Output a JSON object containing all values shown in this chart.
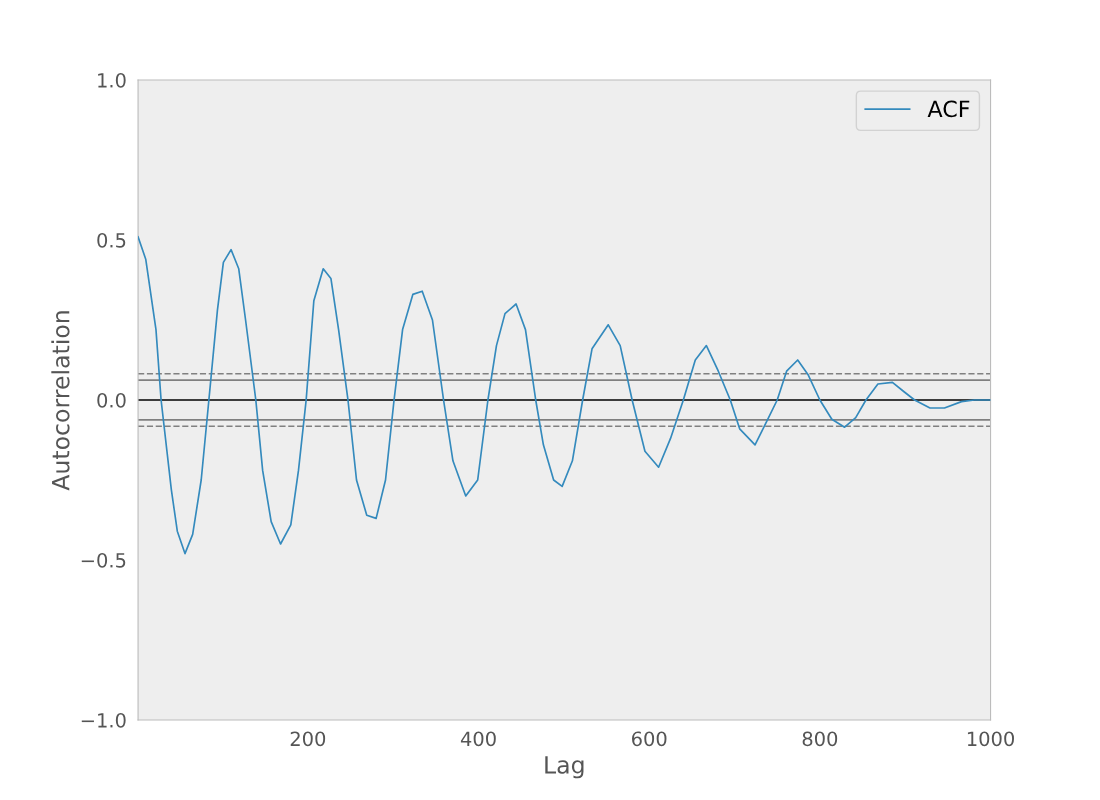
{
  "chart_data": {
    "type": "line",
    "xlabel": "Lag",
    "ylabel": "Autocorrelation",
    "xlim": [
      1,
      1000
    ],
    "xticks": [
      200,
      400,
      600,
      800,
      1000
    ],
    "ylim": [
      -1.0,
      1.0
    ],
    "yticks": [
      {
        "value": -1.0,
        "label": "−1.0"
      },
      {
        "value": -0.5,
        "label": "−0.5"
      },
      {
        "value": 0.0,
        "label": "0.0"
      },
      {
        "value": 0.5,
        "label": "0.5"
      },
      {
        "value": 1.0,
        "label": "1.0"
      }
    ],
    "grid": false,
    "legend": "top right",
    "marker": "none",
    "line_style": "solid",
    "ref_lines": [
      {
        "axis": "y",
        "value": 0.082,
        "color": "#808080",
        "line_style": "dashed"
      },
      {
        "axis": "y",
        "value": 0.062,
        "color": "#808080",
        "line_style": "solid"
      },
      {
        "axis": "y",
        "value": 0.0,
        "color": "#000000",
        "line_style": "solid"
      },
      {
        "axis": "y",
        "value": -0.062,
        "color": "#808080",
        "line_style": "solid"
      },
      {
        "axis": "y",
        "value": -0.082,
        "color": "#808080",
        "line_style": "dashed"
      }
    ],
    "series": [
      {
        "name": "ACF",
        "color": "#348abd",
        "x": [
          1,
          10,
          22,
          28,
          40,
          47,
          56,
          65,
          75,
          84,
          94,
          101,
          110,
          119,
          127,
          139,
          147,
          157,
          168,
          180,
          189,
          198,
          207,
          218,
          227,
          236,
          247,
          257,
          269,
          280,
          291,
          301,
          311,
          323,
          334,
          346,
          359,
          370,
          385,
          399,
          411,
          421,
          431,
          444,
          455,
          467,
          476,
          488,
          498,
          510,
          522,
          533,
          552,
          566,
          580,
          595,
          611,
          625,
          640,
          654,
          667,
          681,
          695,
          706,
          724,
          739,
          750,
          761,
          774,
          786,
          800,
          814,
          829,
          842,
          854,
          868,
          885,
          899,
          911,
          929,
          946,
          966,
          981,
          1000
        ],
        "values": [
          0.51,
          0.44,
          0.22,
          0.0,
          -0.28,
          -0.41,
          -0.48,
          -0.42,
          -0.25,
          0.0,
          0.28,
          0.43,
          0.47,
          0.41,
          0.25,
          0.0,
          -0.22,
          -0.38,
          -0.45,
          -0.39,
          -0.22,
          0.0,
          0.31,
          0.41,
          0.38,
          0.22,
          0.0,
          -0.25,
          -0.36,
          -0.37,
          -0.25,
          0.0,
          0.22,
          0.33,
          0.34,
          0.25,
          0.0,
          -0.19,
          -0.3,
          -0.25,
          0.0,
          0.17,
          0.27,
          0.3,
          0.22,
          0.0,
          -0.14,
          -0.25,
          -0.27,
          -0.19,
          0.0,
          0.16,
          0.235,
          0.17,
          0.0,
          -0.16,
          -0.21,
          -0.12,
          0.0,
          0.125,
          0.17,
          0.09,
          0.0,
          -0.09,
          -0.14,
          -0.06,
          0.0,
          0.09,
          0.125,
          0.08,
          0.0,
          -0.06,
          -0.085,
          -0.055,
          0.0,
          0.05,
          0.055,
          0.025,
          0.0,
          -0.025,
          -0.025,
          -0.005,
          0.0,
          0.0
        ]
      }
    ]
  }
}
